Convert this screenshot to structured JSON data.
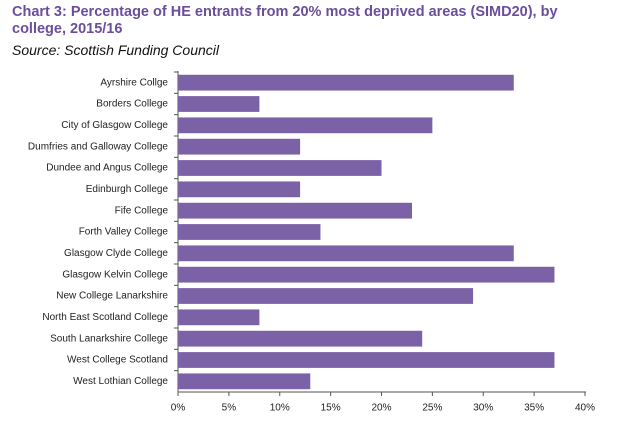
{
  "chart_data": {
    "type": "hbar",
    "title": "Chart 3: Percentage of HE entrants from 20% most deprived areas (SIMD20), by college, 2015/16",
    "subtitle": "Source: Scottish Funding Council",
    "categories": [
      "Ayrshire Collge",
      "Borders College",
      "City of Glasgow College",
      "Dumfries and Galloway College",
      "Dundee and Angus College",
      "Edinburgh College",
      "Fife College",
      "Forth Valley College",
      "Glasgow Clyde College",
      "Glasgow Kelvin College",
      "New College Lanarkshire",
      "North East Scotland College",
      "South Lanarkshire College",
      "West College Scotland",
      "West Lothian College"
    ],
    "values": [
      33,
      8,
      25,
      12,
      20,
      12,
      23,
      14,
      33,
      37,
      29,
      8,
      24,
      37,
      13
    ],
    "color": "#7b62a6",
    "xlim": [
      0,
      40
    ],
    "xticks": [
      {
        "value": 0,
        "label": "0%"
      },
      {
        "value": 5,
        "label": "5%"
      },
      {
        "value": 10,
        "label": "10%"
      },
      {
        "value": 15,
        "label": "15%"
      },
      {
        "value": 20,
        "label": "20%"
      },
      {
        "value": 25,
        "label": "25%"
      },
      {
        "value": 30,
        "label": "30%"
      },
      {
        "value": 35,
        "label": "35%"
      },
      {
        "value": 40,
        "label": "40%"
      }
    ],
    "grid": false
  }
}
